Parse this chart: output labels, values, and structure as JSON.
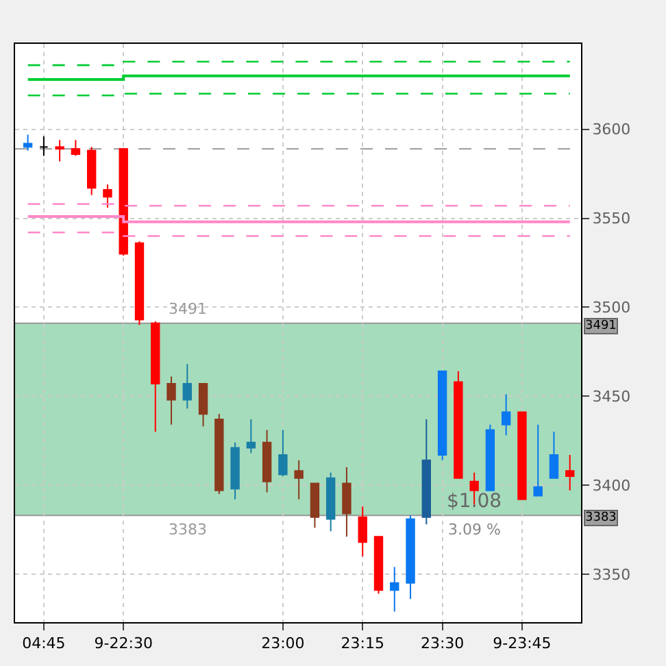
{
  "chart_data": {
    "type": "candlestick",
    "categories": [
      null,
      "04:45",
      null,
      null,
      null,
      null,
      "9-22:30",
      null,
      null,
      null,
      null,
      null,
      null,
      null,
      null,
      null,
      "23:00",
      null,
      null,
      null,
      null,
      "23:15",
      null,
      null,
      null,
      null,
      "23:30",
      null,
      null,
      null,
      null,
      "9-23:45",
      null,
      null,
      null
    ],
    "ohlc": [
      [
        3590,
        3597,
        3588,
        3592
      ],
      [
        3590,
        3596,
        3585,
        3590
      ],
      [
        3590,
        3594,
        3582,
        3589
      ],
      [
        3589,
        3594,
        3585,
        3586
      ],
      [
        3588,
        3590,
        3563,
        3567
      ],
      [
        3566,
        3569,
        3556,
        3562
      ],
      [
        3589,
        3589,
        3529,
        3530
      ],
      [
        3536,
        3537,
        3490,
        3493
      ],
      [
        3491,
        3492,
        3430,
        3457
      ],
      [
        3457,
        3461,
        3434,
        3448
      ],
      [
        3448,
        3468,
        3443,
        3457
      ],
      [
        3457,
        3457,
        3433,
        3440
      ],
      [
        3437,
        3440,
        3395,
        3397
      ],
      [
        3398,
        3424,
        3392,
        3421
      ],
      [
        3421,
        3437,
        3418,
        3424
      ],
      [
        3424,
        3431,
        3396,
        3402
      ],
      [
        3406,
        3431,
        3405,
        3417
      ],
      [
        3408,
        3414,
        3392,
        3404
      ],
      [
        3401,
        3401,
        3376,
        3382
      ],
      [
        3381,
        3407,
        3374,
        3404
      ],
      [
        3401,
        3410,
        3371,
        3384
      ],
      [
        3382,
        3388,
        3360,
        3368
      ],
      [
        3371,
        3371,
        3339,
        3341
      ],
      [
        3341,
        3354,
        3329,
        3345
      ],
      [
        3345,
        3383,
        3336,
        3381
      ],
      [
        3382,
        3437,
        3378,
        3414
      ],
      [
        3417,
        3464,
        3414,
        3464
      ],
      [
        3458,
        3464,
        3404,
        3404
      ],
      [
        3402,
        3407,
        3389,
        3397
      ],
      [
        3397,
        3434,
        3397,
        3431
      ],
      [
        3434,
        3451,
        3428,
        3441
      ],
      [
        3441,
        3441,
        3392,
        3392
      ],
      [
        3394,
        3434,
        3394,
        3399
      ],
      [
        3404,
        3430,
        3404,
        3417
      ],
      [
        3408,
        3417,
        3397,
        3405
      ]
    ],
    "colors": [
      "#0a78f0",
      "#000000",
      "#ff0000",
      "#ff0000",
      "#ff0000",
      "#ff0000",
      "#ff0000",
      "#ff0000",
      "#ff0000",
      "#8b3a1e",
      "#1a7fa8",
      "#8b3a1e",
      "#8b3a1e",
      "#1a7fa8",
      "#1a7fa8",
      "#8b3a1e",
      "#1a7fa8",
      "#8b3a1e",
      "#8b3a1e",
      "#1a7fa8",
      "#8b3a1e",
      "#ff0000",
      "#ff0000",
      "#0a78f0",
      "#0a78f0",
      "#1a5f9a",
      "#0a78f0",
      "#ff0000",
      "#ff0000",
      "#0a78f0",
      "#0a78f0",
      "#ff0000",
      "#0a78f0",
      "#0a78f0",
      "#ff0000"
    ],
    "series": [
      {
        "type": "step",
        "color": "#00cc33",
        "line_style": "dashed",
        "values": [
          3636,
          3636,
          3636,
          3636,
          3636,
          3636,
          3638,
          3638,
          3638,
          3638,
          3638,
          3638,
          3638,
          3638,
          3638,
          3638,
          3638,
          3638,
          3638,
          3638,
          3638,
          3638,
          3638,
          3638,
          3638,
          3638,
          3638,
          3638,
          3638,
          3638,
          3638,
          3638,
          3638,
          3638,
          3638
        ]
      },
      {
        "type": "step",
        "color": "#00cc33",
        "line_style": "solid",
        "values": [
          3628,
          3628,
          3628,
          3628,
          3628,
          3628,
          3630,
          3630,
          3630,
          3630,
          3630,
          3630,
          3630,
          3630,
          3630,
          3630,
          3630,
          3630,
          3630,
          3630,
          3630,
          3630,
          3630,
          3630,
          3630,
          3630,
          3630,
          3630,
          3630,
          3630,
          3630,
          3630,
          3630,
          3630,
          3630
        ]
      },
      {
        "type": "step",
        "color": "#00cc33",
        "line_style": "dashed",
        "values": [
          3619,
          3619,
          3619,
          3619,
          3619,
          3619,
          3620,
          3620,
          3620,
          3620,
          3620,
          3620,
          3620,
          3620,
          3620,
          3620,
          3620,
          3620,
          3620,
          3620,
          3620,
          3620,
          3620,
          3620,
          3620,
          3620,
          3620,
          3620,
          3620,
          3620,
          3620,
          3620,
          3620,
          3620,
          3620
        ]
      },
      {
        "type": "step",
        "color": "#ff88c8",
        "line_style": "dashed",
        "values": [
          3558,
          3558,
          3558,
          3558,
          3558,
          3558,
          3557,
          3557,
          3557,
          3557,
          3557,
          3557,
          3557,
          3557,
          3557,
          3557,
          3557,
          3557,
          3557,
          3557,
          3557,
          3557,
          3557,
          3557,
          3557,
          3557,
          3557,
          3557,
          3557,
          3557,
          3557,
          3557,
          3557,
          3557,
          3557
        ]
      },
      {
        "type": "step",
        "color": "#ff88c8",
        "line_style": "solid",
        "values": [
          3551,
          3551,
          3551,
          3551,
          3551,
          3551,
          3548,
          3548,
          3548,
          3548,
          3548,
          3548,
          3548,
          3548,
          3548,
          3548,
          3548,
          3548,
          3548,
          3548,
          3548,
          3548,
          3548,
          3548,
          3548,
          3548,
          3548,
          3548,
          3548,
          3548,
          3548,
          3548,
          3548,
          3548,
          3548
        ]
      },
      {
        "type": "step",
        "color": "#ff88c8",
        "line_style": "dashed",
        "values": [
          3542,
          3542,
          3542,
          3542,
          3542,
          3542,
          3540,
          3540,
          3540,
          3540,
          3540,
          3540,
          3540,
          3540,
          3540,
          3540,
          3540,
          3540,
          3540,
          3540,
          3540,
          3540,
          3540,
          3540,
          3540,
          3540,
          3540,
          3540,
          3540,
          3540,
          3540,
          3540,
          3540,
          3540,
          3540
        ]
      }
    ],
    "ref_lines": [
      {
        "axis": "y",
        "value": 3589,
        "label": null,
        "color": "#999999",
        "line_style": "dashed"
      },
      {
        "axis": "y",
        "value": 3491,
        "label": "3491",
        "color": "#999999",
        "line_style": "solid"
      },
      {
        "axis": "y",
        "value": 3383,
        "label": "3383",
        "color": "#999999",
        "line_style": "solid"
      }
    ],
    "bands": [
      {
        "axis": "y",
        "from": 3383,
        "to": 3491,
        "color": "#9bd8b4"
      }
    ],
    "annotations": [
      {
        "text": "3491",
        "y": 3491
      },
      {
        "text": "3383",
        "y": 3383
      },
      "$1.08",
      "3.09 %"
    ],
    "ylim": [
      3323,
      3648
    ],
    "yticks": [
      3350,
      3400,
      3450,
      3500,
      3550,
      3600
    ],
    "grid": true
  }
}
